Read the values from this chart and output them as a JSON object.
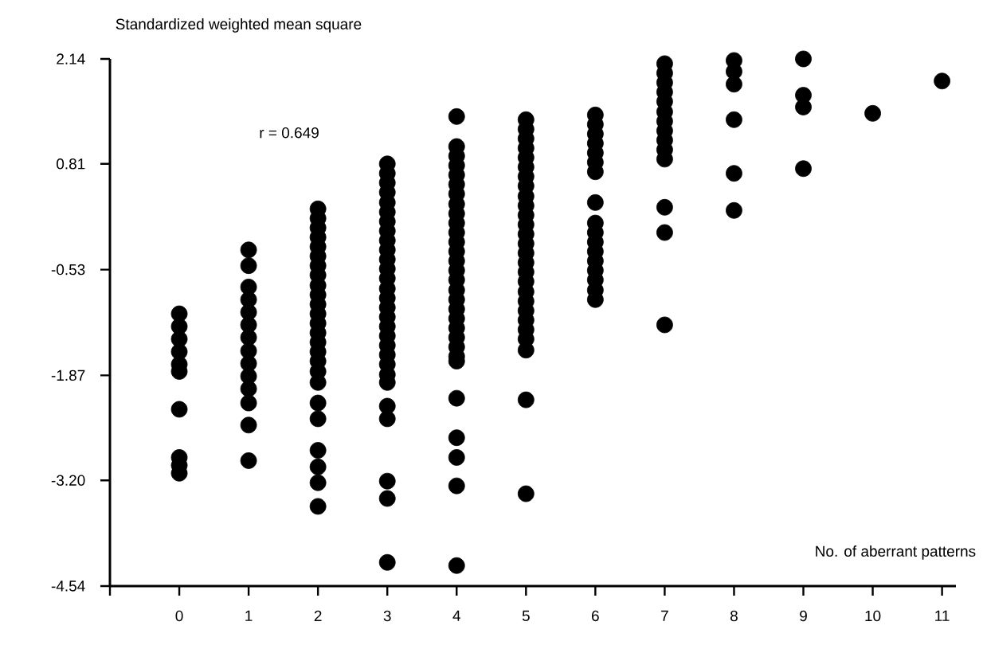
{
  "chart_data": {
    "type": "scatter",
    "xlabel": "No. of aberrant patterns",
    "ylabel": "Standardized weighted mean square",
    "annotations": [
      "r = 0.649"
    ],
    "xlim": [
      -1,
      11.2
    ],
    "ylim": [
      -4.54,
      2.14
    ],
    "xticks": [
      {
        "value": -1,
        "label": null
      },
      0,
      1,
      2,
      3,
      4,
      5,
      6,
      7,
      8,
      9,
      10,
      11
    ],
    "yticks": [
      -4.54,
      {
        "value": -3.2,
        "label": "-3.20"
      },
      -1.87,
      -0.53,
      0.81,
      2.14
    ],
    "marker": "circle",
    "grid": false,
    "series": [
      {
        "color": "#000000",
        "x": [
          0,
          0,
          0,
          0,
          0,
          0,
          0,
          0,
          0,
          0,
          1,
          1,
          1,
          1,
          1,
          1,
          1,
          1,
          1,
          1,
          1,
          1,
          1,
          1,
          2,
          2,
          2,
          2,
          2,
          2,
          2,
          2,
          2,
          2,
          2,
          2,
          2,
          2,
          2,
          2,
          2,
          2,
          2,
          2,
          2,
          2,
          2,
          2,
          2,
          3,
          3,
          3,
          3,
          3,
          3,
          3,
          3,
          3,
          3,
          3,
          3,
          3,
          3,
          3,
          3,
          3,
          3,
          3,
          3,
          3,
          3,
          3,
          3,
          3,
          3,
          3,
          3,
          3,
          4,
          4,
          4,
          4,
          4,
          4,
          4,
          4,
          4,
          4,
          4,
          4,
          4,
          4,
          4,
          4,
          4,
          4,
          4,
          4,
          4,
          4,
          4,
          4,
          4,
          4,
          4,
          4,
          4,
          4,
          5,
          5,
          5,
          5,
          5,
          5,
          5,
          5,
          5,
          5,
          5,
          5,
          5,
          5,
          5,
          5,
          5,
          5,
          5,
          5,
          5,
          5,
          5,
          5,
          5,
          5,
          5,
          6,
          6,
          6,
          6,
          6,
          6,
          6,
          6,
          6,
          6,
          6,
          6,
          6,
          6,
          6,
          6,
          6,
          7,
          7,
          7,
          7,
          7,
          7,
          7,
          7,
          7,
          7,
          7,
          7,
          7,
          7,
          8,
          8,
          8,
          8,
          8,
          8,
          9,
          9,
          9,
          9,
          10,
          11
        ],
        "values": [
          -1.09,
          -1.25,
          -1.41,
          -1.57,
          -1.73,
          -1.82,
          -2.3,
          -2.91,
          -3.01,
          -3.11,
          -0.28,
          -0.48,
          -0.75,
          -0.91,
          -1.07,
          -1.23,
          -1.39,
          -1.56,
          -1.72,
          -1.88,
          -2.04,
          -2.22,
          -2.5,
          -2.95,
          0.24,
          0.12,
          0.0,
          -0.12,
          -0.24,
          -0.36,
          -0.48,
          -0.6,
          -0.73,
          -0.85,
          -0.97,
          -1.09,
          -1.21,
          -1.33,
          -1.45,
          -1.57,
          -1.69,
          -1.82,
          -1.96,
          -2.22,
          -2.42,
          -2.82,
          -3.03,
          -3.23,
          -3.53,
          0.81,
          0.69,
          0.57,
          0.45,
          0.32,
          0.2,
          0.08,
          -0.04,
          -0.16,
          -0.28,
          -0.4,
          -0.52,
          -0.64,
          -0.77,
          -0.89,
          -1.01,
          -1.13,
          -1.25,
          -1.37,
          -1.49,
          -1.61,
          -1.73,
          -1.86,
          -1.96,
          -2.26,
          -2.42,
          -3.21,
          -3.43,
          -4.24,
          1.41,
          1.03,
          0.91,
          0.79,
          0.67,
          0.55,
          0.43,
          0.3,
          0.18,
          0.06,
          -0.06,
          -0.18,
          -0.3,
          -0.42,
          -0.54,
          -0.66,
          -0.79,
          -0.91,
          -1.03,
          -1.15,
          -1.27,
          -1.39,
          -1.51,
          -1.63,
          -1.69,
          -2.16,
          -2.66,
          -2.91,
          -3.27,
          -4.28,
          1.37,
          1.25,
          1.13,
          1.01,
          0.89,
          0.77,
          0.65,
          0.53,
          0.4,
          0.28,
          0.16,
          0.04,
          -0.08,
          -0.2,
          -0.32,
          -0.44,
          -0.56,
          -0.68,
          -0.81,
          -0.93,
          -1.05,
          -1.17,
          -1.29,
          -1.41,
          -1.55,
          -2.18,
          -3.37,
          1.43,
          1.31,
          1.19,
          1.07,
          0.95,
          0.83,
          0.71,
          0.32,
          0.06,
          -0.06,
          -0.18,
          -0.3,
          -0.42,
          -0.54,
          -0.66,
          -0.79,
          -0.91,
          2.08,
          1.96,
          1.84,
          1.72,
          1.6,
          1.47,
          1.35,
          1.23,
          1.11,
          0.99,
          0.87,
          0.26,
          -0.06,
          -1.23,
          2.12,
          1.98,
          1.82,
          1.37,
          0.69,
          0.22,
          2.14,
          1.68,
          1.53,
          0.75,
          1.45,
          1.86
        ]
      }
    ]
  }
}
